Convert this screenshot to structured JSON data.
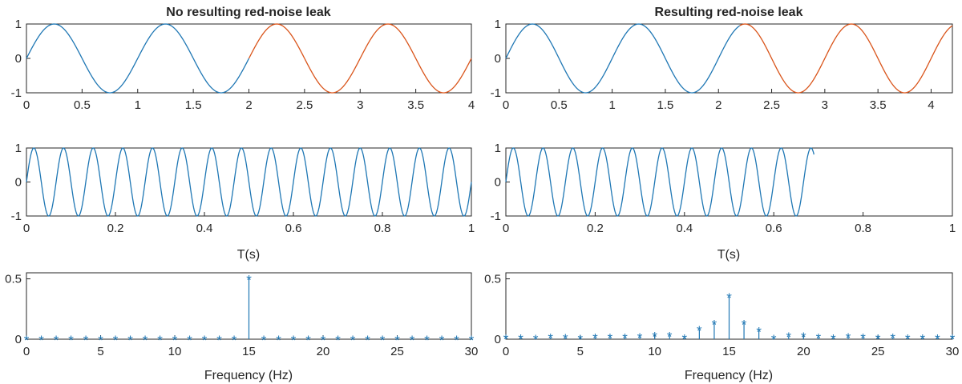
{
  "figure": {
    "left_title": "No resulting red-noise leak",
    "right_title": "Resulting red-noise leak",
    "time_label": "T(s)",
    "freq_label": "Frequency (Hz)",
    "colors": {
      "blue": "#1f77b4",
      "orange": "#d9541a",
      "axis": "#262626"
    }
  },
  "chart_data": [
    {
      "id": "top-left",
      "type": "line",
      "title": "No resulting red-noise leak",
      "xlabel": "",
      "ylabel": "",
      "xlim": [
        0,
        4
      ],
      "ylim": [
        -1,
        1
      ],
      "xticks": [
        0,
        0.5,
        1,
        1.5,
        2,
        2.5,
        3,
        3.5,
        4
      ],
      "yticks": [
        -1,
        0,
        1
      ],
      "series": [
        {
          "color": "#1f77b4",
          "freq_hz": 1,
          "x_range": [
            0,
            2
          ]
        },
        {
          "color": "#d9541a",
          "freq_hz": 1,
          "x_range": [
            2,
            4
          ]
        }
      ]
    },
    {
      "id": "top-right",
      "type": "line",
      "title": "Resulting red-noise leak",
      "xlabel": "",
      "ylabel": "",
      "xlim": [
        0,
        4.2
      ],
      "ylim": [
        -1,
        1
      ],
      "xticks": [
        0,
        0.5,
        1,
        1.5,
        2,
        2.5,
        3,
        3.5,
        4
      ],
      "yticks": [
        -1,
        0,
        1
      ],
      "series": [
        {
          "color": "#1f77b4",
          "freq_hz": 1,
          "x_range": [
            0,
            2.2
          ]
        },
        {
          "color": "#d9541a",
          "freq_hz": 1,
          "x_range": [
            2.2,
            4.2
          ]
        }
      ]
    },
    {
      "id": "mid-left",
      "type": "line",
      "title": "",
      "xlabel": "T(s)",
      "ylabel": "",
      "xlim": [
        0,
        1
      ],
      "ylim": [
        -1,
        1
      ],
      "xticks": [
        0,
        0.2,
        0.4,
        0.6,
        0.8,
        1
      ],
      "yticks": [
        -1,
        0,
        1
      ],
      "series": [
        {
          "color": "#1f77b4",
          "freq_hz": 15,
          "x_range": [
            0,
            1
          ]
        }
      ]
    },
    {
      "id": "mid-right",
      "type": "line",
      "title": "",
      "xlabel": "T(s)",
      "ylabel": "",
      "xlim": [
        0,
        1
      ],
      "ylim": [
        -1,
        1
      ],
      "xticks": [
        0,
        0.2,
        0.4,
        0.6,
        0.8,
        1
      ],
      "yticks": [
        -1,
        0,
        1
      ],
      "series": [
        {
          "color": "#1f77b4",
          "freq_hz": 15,
          "x_range": [
            0,
            0.69
          ]
        }
      ]
    },
    {
      "id": "bottom-left",
      "type": "stem",
      "title": "",
      "xlabel": "Frequency (Hz)",
      "ylabel": "",
      "xlim": [
        0,
        30
      ],
      "ylim": [
        0,
        0.55
      ],
      "xticks": [
        0,
        5,
        10,
        15,
        20,
        25,
        30
      ],
      "yticks": [
        0,
        0.5
      ],
      "x": [
        0,
        1,
        2,
        3,
        4,
        5,
        6,
        7,
        8,
        9,
        10,
        11,
        12,
        13,
        14,
        15,
        16,
        17,
        18,
        19,
        20,
        21,
        22,
        23,
        24,
        25,
        26,
        27,
        28,
        29,
        30
      ],
      "values": [
        0,
        0,
        0,
        0,
        0,
        0,
        0,
        0,
        0,
        0,
        0,
        0,
        0,
        0,
        0,
        0.5,
        0,
        0,
        0,
        0,
        0,
        0,
        0,
        0,
        0,
        0,
        0,
        0,
        0,
        0,
        0
      ]
    },
    {
      "id": "bottom-right",
      "type": "stem",
      "title": "",
      "xlabel": "Frequency (Hz)",
      "ylabel": "",
      "xlim": [
        0,
        30
      ],
      "ylim": [
        0,
        0.55
      ],
      "xticks": [
        0,
        5,
        10,
        15,
        20,
        25,
        30
      ],
      "yticks": [
        0,
        0.5
      ],
      "x": [
        0,
        1,
        2,
        3,
        4,
        5,
        6,
        7,
        8,
        9,
        10,
        11,
        12,
        13,
        14,
        15,
        16,
        17,
        18,
        19,
        20,
        21,
        22,
        23,
        24,
        25,
        26,
        27,
        28,
        29,
        30
      ],
      "values": [
        0.01,
        0.01,
        0.005,
        0.015,
        0.012,
        0.005,
        0.015,
        0.015,
        0.015,
        0.02,
        0.03,
        0.03,
        0.01,
        0.08,
        0.13,
        0.35,
        0.13,
        0.07,
        0.005,
        0.025,
        0.025,
        0.015,
        0.01,
        0.02,
        0.015,
        0.01,
        0.015,
        0.01,
        0.01,
        0.01,
        0.01
      ]
    }
  ]
}
